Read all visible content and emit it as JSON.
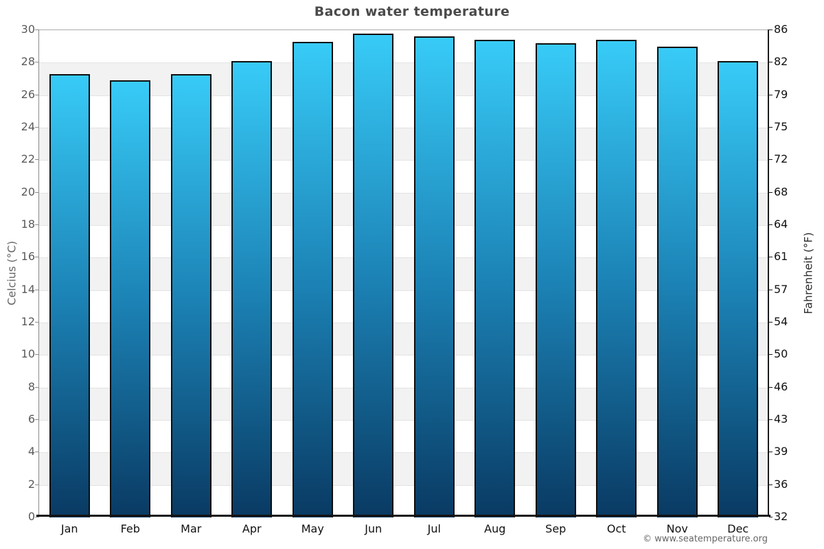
{
  "page": {
    "footer": "© www.seatemperature.org"
  },
  "chart_data": {
    "type": "bar",
    "title": "Bacon water temperature",
    "categories": [
      "Jan",
      "Feb",
      "Mar",
      "Apr",
      "May",
      "Jun",
      "Jul",
      "Aug",
      "Sep",
      "Oct",
      "Nov",
      "Dec"
    ],
    "values": [
      27.3,
      26.9,
      27.3,
      28.1,
      29.3,
      29.8,
      29.6,
      29.4,
      29.2,
      29.4,
      29.0,
      28.1
    ],
    "series_unit": "°C",
    "ylabel_left": "Celcius (°C)",
    "ylabel_right": "Fahrenheit (°F)",
    "ylim": [
      0,
      30
    ],
    "ytick_step": 2,
    "yticks_celsius": [
      "30",
      "28",
      "26",
      "24",
      "22",
      "20",
      "18",
      "16",
      "14",
      "12",
      "10",
      "8",
      "6",
      "4",
      "2",
      "0"
    ],
    "yticks_fahrenheit": [
      "86",
      "82",
      "79",
      "75",
      "72",
      "68",
      "64",
      "61",
      "57",
      "54",
      "50",
      "46",
      "43",
      "39",
      "36",
      "32"
    ],
    "legend": null,
    "grid": "horizontal alternating bands with light gridlines",
    "colors": {
      "bar_gradient_top": "#38cbf7",
      "bar_gradient_mid": "#1c83b6",
      "bar_gradient_bottom": "#093a63",
      "bar_border": "#0d0d0d",
      "band_shade": "#f2f2f2",
      "band_plain": "#ffffff",
      "gridline": "#e3e3e3",
      "title_color": "#4a4a4a"
    }
  }
}
